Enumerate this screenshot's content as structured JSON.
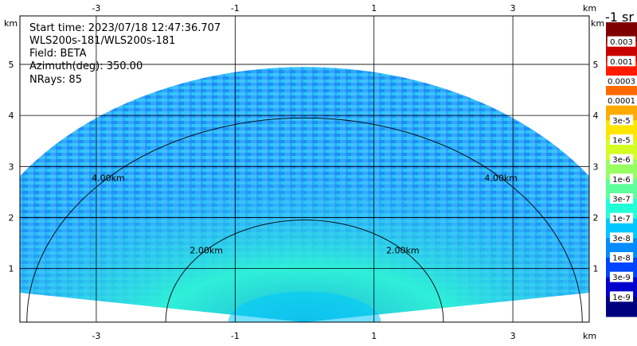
{
  "info": {
    "start_time": "Start time: 2023/07/18 12:47:36.707",
    "instrument": "WLS200s-181/WLS200s-181",
    "field": "Field: BETA",
    "azimuth": "Azimuth(deg): 350.00",
    "nrays": "NRays: 85"
  },
  "chart_data": {
    "type": "heatmap",
    "plot_kind": "RHI polar scan",
    "x_unit": "km",
    "y_unit": "km",
    "xlim": [
      -4.1,
      4.1
    ],
    "ylim": [
      -0.05,
      5.95
    ],
    "x_ticks": [
      -3,
      -1,
      1,
      3
    ],
    "x_tick_labels": [
      "-3",
      "-1",
      "1",
      "3"
    ],
    "y_ticks": [
      1,
      2,
      3,
      4,
      5
    ],
    "y_tick_labels": [
      "1",
      "2",
      "3",
      "4",
      "5"
    ],
    "grid": true,
    "range_rings": [
      {
        "range_km": 2.0,
        "label": "2.00km"
      },
      {
        "range_km": 4.0,
        "label": "4.00km"
      }
    ],
    "max_range_km": 5.0,
    "colorbar": {
      "title": "-1 sr",
      "labels": [
        "0.003",
        "0.001",
        "0.0003",
        "0.0001",
        "3e-5",
        "1e-5",
        "3e-6",
        "1e-6",
        "3e-7",
        "1e-7",
        "3e-8",
        "1e-8",
        "3e-9",
        "1e-9"
      ],
      "colors": [
        "#7f0000",
        "#c80000",
        "#ff1a00",
        "#ff6a00",
        "#ffab00",
        "#ffe600",
        "#d4ff23",
        "#96ff61",
        "#5dff9a",
        "#22ffd6",
        "#00c8ff",
        "#008bff",
        "#0044ff",
        "#0000cc",
        "#00007f"
      ]
    }
  }
}
